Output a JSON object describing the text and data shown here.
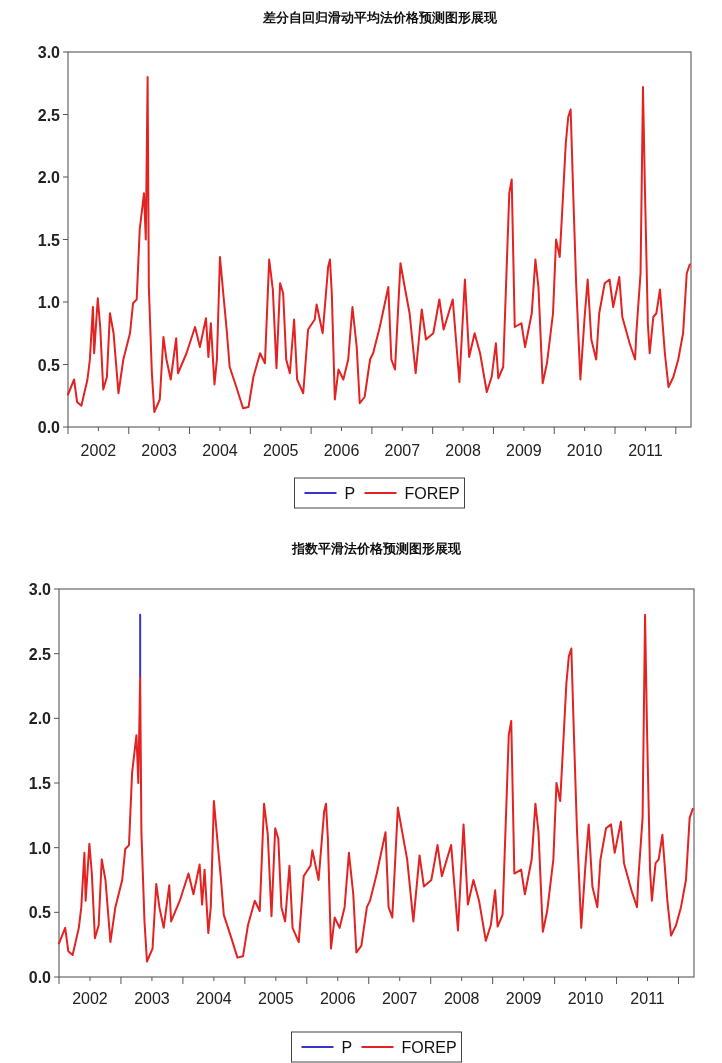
{
  "chart_data": [
    {
      "type": "line",
      "title": "差分自回归滑动平均法价格预测图形展现",
      "legend": "bottom",
      "xlim": [
        2002,
        2012.25
      ],
      "ylim": [
        0,
        3
      ],
      "xticks": [
        {
          "value": 2002,
          "label": null
        },
        {
          "value": 2002.5,
          "label": "2002"
        },
        {
          "value": 2003,
          "label": null
        },
        {
          "value": 2003.5,
          "label": "2003"
        },
        {
          "value": 2004,
          "label": null
        },
        {
          "value": 2004.5,
          "label": "2004"
        },
        {
          "value": 2005,
          "label": null
        },
        {
          "value": 2005.5,
          "label": "2005"
        },
        {
          "value": 2006,
          "label": null
        },
        {
          "value": 2006.5,
          "label": "2006"
        },
        {
          "value": 2007,
          "label": null
        },
        {
          "value": 2007.5,
          "label": "2007"
        },
        {
          "value": 2008,
          "label": null
        },
        {
          "value": 2008.5,
          "label": "2008"
        },
        {
          "value": 2009,
          "label": null
        },
        {
          "value": 2009.5,
          "label": "2009"
        },
        {
          "value": 2010,
          "label": null
        },
        {
          "value": 2010.5,
          "label": "2010"
        },
        {
          "value": 2011,
          "label": null
        },
        {
          "value": 2011.5,
          "label": "2011"
        },
        {
          "value": 2012,
          "label": null
        }
      ],
      "yticks": [
        {
          "value": 0,
          "label": "0.0"
        },
        0.5,
        {
          "value": 1,
          "label": "1.0"
        },
        1.5,
        {
          "value": 2,
          "label": "2.0"
        },
        2.5,
        {
          "value": 3,
          "label": "3.0"
        }
      ],
      "x": [
        2002.0,
        2002.1,
        2002.15,
        2002.22,
        2002.32,
        2002.36,
        2002.41,
        2002.43,
        2002.49,
        2002.53,
        2002.58,
        2002.64,
        2002.69,
        2002.75,
        2002.83,
        2002.91,
        2003.02,
        2003.07,
        2003.13,
        2003.18,
        2003.25,
        2003.28,
        2003.31,
        2003.33,
        2003.38,
        2003.42,
        2003.51,
        2003.57,
        2003.62,
        2003.69,
        2003.78,
        2003.81,
        2003.95,
        2004.09,
        2004.17,
        2004.27,
        2004.31,
        2004.35,
        2004.41,
        2004.45,
        2004.5,
        2004.56,
        2004.61,
        2004.66,
        2004.77,
        2004.88,
        2004.97,
        2005.05,
        2005.16,
        2005.24,
        2005.31,
        2005.37,
        2005.43,
        2005.49,
        2005.54,
        2005.59,
        2005.65,
        2005.72,
        2005.77,
        2005.87,
        2005.95,
        2006.06,
        2006.09,
        2006.19,
        2006.28,
        2006.31,
        2006.34,
        2006.39,
        2006.45,
        2006.53,
        2006.61,
        2006.68,
        2006.75,
        2006.8,
        2006.88,
        2006.97,
        2007.02,
        2007.13,
        2007.27,
        2007.32,
        2007.38,
        2007.47,
        2007.54,
        2007.62,
        2007.72,
        2007.82,
        2007.89,
        2008.01,
        2008.11,
        2008.18,
        2008.33,
        2008.44,
        2008.53,
        2008.6,
        2008.69,
        2008.78,
        2008.89,
        2008.97,
        2009.04,
        2009.08,
        2009.16,
        2009.26,
        2009.3,
        2009.35,
        2009.46,
        2009.52,
        2009.63,
        2009.69,
        2009.74,
        2009.81,
        2009.88,
        2009.98,
        2010.03,
        2010.09,
        2010.15,
        2010.19,
        2010.23,
        2010.27,
        2010.31,
        2010.36,
        2010.43,
        2010.5,
        2010.55,
        2010.61,
        2010.69,
        2010.74,
        2010.83,
        2010.91,
        2010.97,
        2011.07,
        2011.12,
        2011.24,
        2011.33,
        2011.35,
        2011.42,
        2011.46,
        2011.49,
        2011.54,
        2011.57,
        2011.63,
        2011.68,
        2011.74,
        2011.82,
        2011.88,
        2011.96,
        2012.04,
        2012.12,
        2012.18,
        2012.23
      ],
      "series": [
        {
          "name": "P",
          "color": "#3535cc",
          "values": [
            null,
            null,
            null,
            null,
            null,
            null,
            null,
            null,
            null,
            null,
            null,
            null,
            null,
            null,
            null,
            null,
            null,
            null,
            null,
            null,
            null,
            null,
            null,
            null,
            null,
            null,
            null,
            null,
            null,
            null,
            null,
            null,
            null,
            null,
            null,
            null,
            null,
            null,
            null,
            null,
            null,
            null,
            null,
            null,
            null,
            null,
            null,
            null,
            null,
            null,
            null,
            null,
            null,
            null,
            null,
            null,
            null,
            null,
            null,
            null,
            null,
            null,
            null,
            null,
            null,
            null,
            null,
            null,
            null,
            null,
            null,
            null,
            null,
            null,
            null,
            null,
            null,
            null,
            null,
            null,
            null,
            null,
            null,
            null,
            null,
            null,
            null,
            null,
            null,
            null,
            null,
            null,
            null,
            null,
            null,
            null,
            null,
            null,
            null,
            null,
            null,
            null,
            null,
            null,
            null,
            null,
            null,
            null,
            null,
            null,
            null,
            null,
            null,
            null,
            null,
            null,
            null,
            null,
            null,
            null,
            null,
            null,
            null,
            null,
            null,
            null,
            null,
            null,
            null,
            null,
            null,
            null,
            null,
            null,
            null,
            null,
            null,
            null,
            null,
            null,
            null,
            null,
            null,
            null,
            null,
            null,
            null,
            null,
            null
          ]
        },
        {
          "name": "FOREP",
          "color": "#e32222",
          "values": [
            0.26,
            0.38,
            0.2,
            0.17,
            0.38,
            0.54,
            0.96,
            0.59,
            1.03,
            0.8,
            0.3,
            0.4,
            0.91,
            0.75,
            0.27,
            0.54,
            0.75,
            0.99,
            1.02,
            1.58,
            1.87,
            1.5,
            2.8,
            1.12,
            0.43,
            0.12,
            0.22,
            0.72,
            0.54,
            0.38,
            0.71,
            0.43,
            0.59,
            0.8,
            0.64,
            0.87,
            0.56,
            0.83,
            0.34,
            0.54,
            1.36,
            1.04,
            0.78,
            0.48,
            0.32,
            0.15,
            0.16,
            0.4,
            0.59,
            0.51,
            1.34,
            1.1,
            0.47,
            1.15,
            1.07,
            0.54,
            0.43,
            0.86,
            0.38,
            0.27,
            0.78,
            0.86,
            0.98,
            0.75,
            1.28,
            1.34,
            1.07,
            0.22,
            0.46,
            0.38,
            0.54,
            0.96,
            0.64,
            0.19,
            0.24,
            0.54,
            0.59,
            0.8,
            1.12,
            0.54,
            0.46,
            1.31,
            1.12,
            0.91,
            0.43,
            0.94,
            0.7,
            0.75,
            1.02,
            0.78,
            1.02,
            0.36,
            1.18,
            0.56,
            0.75,
            0.59,
            0.28,
            0.4,
            0.67,
            0.39,
            0.48,
            1.87,
            1.98,
            0.8,
            0.83,
            0.64,
            0.91,
            1.34,
            1.12,
            0.35,
            0.51,
            0.91,
            1.5,
            1.36,
            1.9,
            2.27,
            2.48,
            2.54,
            1.9,
            1.15,
            0.38,
            0.88,
            1.18,
            0.7,
            0.54,
            0.91,
            1.15,
            1.18,
            0.96,
            1.2,
            0.88,
            0.67,
            0.54,
            0.75,
            1.23,
            2.72,
            1.95,
            0.83,
            0.59,
            0.88,
            0.91,
            1.1,
            0.59,
            0.32,
            0.4,
            0.54,
            0.75,
            1.23,
            1.3
          ]
        }
      ]
    },
    {
      "type": "line",
      "title": "指数平滑法价格预测图形展现",
      "legend": "bottom",
      "xlim": [
        2002,
        2012.25
      ],
      "ylim": [
        0,
        3
      ],
      "xticks": [
        {
          "value": 2002,
          "label": null
        },
        {
          "value": 2002.5,
          "label": "2002"
        },
        {
          "value": 2003,
          "label": null
        },
        {
          "value": 2003.5,
          "label": "2003"
        },
        {
          "value": 2004,
          "label": null
        },
        {
          "value": 2004.5,
          "label": "2004"
        },
        {
          "value": 2005,
          "label": null
        },
        {
          "value": 2005.5,
          "label": "2005"
        },
        {
          "value": 2006,
          "label": null
        },
        {
          "value": 2006.5,
          "label": "2006"
        },
        {
          "value": 2007,
          "label": null
        },
        {
          "value": 2007.5,
          "label": "2007"
        },
        {
          "value": 2008,
          "label": null
        },
        {
          "value": 2008.5,
          "label": "2008"
        },
        {
          "value": 2009,
          "label": null
        },
        {
          "value": 2009.5,
          "label": "2009"
        },
        {
          "value": 2010,
          "label": null
        },
        {
          "value": 2010.5,
          "label": "2010"
        },
        {
          "value": 2011,
          "label": null
        },
        {
          "value": 2011.5,
          "label": "2011"
        },
        {
          "value": 2012,
          "label": null
        }
      ],
      "yticks": [
        {
          "value": 0,
          "label": "0.0"
        },
        0.5,
        {
          "value": 1,
          "label": "1.0"
        },
        1.5,
        {
          "value": 2,
          "label": "2.0"
        },
        2.5,
        {
          "value": 3,
          "label": "3.0"
        }
      ],
      "x": [
        2002.0,
        2002.1,
        2002.15,
        2002.22,
        2002.32,
        2002.36,
        2002.41,
        2002.43,
        2002.49,
        2002.53,
        2002.58,
        2002.64,
        2002.69,
        2002.75,
        2002.83,
        2002.91,
        2003.02,
        2003.07,
        2003.13,
        2003.18,
        2003.25,
        2003.28,
        2003.31,
        2003.33,
        2003.38,
        2003.42,
        2003.51,
        2003.57,
        2003.62,
        2003.69,
        2003.78,
        2003.81,
        2003.95,
        2004.09,
        2004.17,
        2004.27,
        2004.31,
        2004.35,
        2004.41,
        2004.45,
        2004.5,
        2004.56,
        2004.61,
        2004.66,
        2004.77,
        2004.88,
        2004.97,
        2005.05,
        2005.16,
        2005.24,
        2005.31,
        2005.37,
        2005.43,
        2005.49,
        2005.54,
        2005.59,
        2005.65,
        2005.72,
        2005.77,
        2005.87,
        2005.95,
        2006.06,
        2006.09,
        2006.19,
        2006.28,
        2006.31,
        2006.34,
        2006.39,
        2006.45,
        2006.53,
        2006.61,
        2006.68,
        2006.75,
        2006.8,
        2006.88,
        2006.97,
        2007.02,
        2007.13,
        2007.27,
        2007.32,
        2007.38,
        2007.47,
        2007.54,
        2007.62,
        2007.72,
        2007.82,
        2007.89,
        2008.01,
        2008.11,
        2008.18,
        2008.33,
        2008.44,
        2008.53,
        2008.6,
        2008.69,
        2008.78,
        2008.89,
        2008.97,
        2009.04,
        2009.08,
        2009.16,
        2009.26,
        2009.3,
        2009.35,
        2009.46,
        2009.52,
        2009.63,
        2009.69,
        2009.74,
        2009.81,
        2009.88,
        2009.98,
        2010.03,
        2010.09,
        2010.15,
        2010.19,
        2010.23,
        2010.27,
        2010.31,
        2010.36,
        2010.43,
        2010.5,
        2010.55,
        2010.61,
        2010.69,
        2010.74,
        2010.83,
        2010.91,
        2010.97,
        2011.07,
        2011.12,
        2011.24,
        2011.33,
        2011.35,
        2011.42,
        2011.46,
        2011.49,
        2011.54,
        2011.57,
        2011.63,
        2011.68,
        2011.74,
        2011.82,
        2011.88,
        2011.96,
        2012.04,
        2012.12,
        2012.18,
        2012.23
      ],
      "series": [
        {
          "name": "P",
          "color": "#3535cc",
          "x": [
            2003.31,
            2003.31
          ],
          "values": [
            2.32,
            2.8
          ]
        },
        {
          "name": "FOREP",
          "color": "#e32222",
          "values": [
            0.26,
            0.38,
            0.2,
            0.17,
            0.38,
            0.54,
            0.96,
            0.59,
            1.03,
            0.8,
            0.3,
            0.4,
            0.91,
            0.75,
            0.27,
            0.54,
            0.75,
            0.99,
            1.02,
            1.58,
            1.87,
            1.5,
            2.32,
            1.12,
            0.43,
            0.12,
            0.22,
            0.72,
            0.54,
            0.38,
            0.71,
            0.43,
            0.59,
            0.8,
            0.64,
            0.87,
            0.56,
            0.83,
            0.34,
            0.54,
            1.36,
            1.04,
            0.78,
            0.48,
            0.32,
            0.15,
            0.16,
            0.4,
            0.59,
            0.51,
            1.34,
            1.1,
            0.47,
            1.15,
            1.07,
            0.54,
            0.43,
            0.86,
            0.38,
            0.27,
            0.78,
            0.86,
            0.98,
            0.75,
            1.28,
            1.34,
            1.07,
            0.22,
            0.46,
            0.38,
            0.54,
            0.96,
            0.64,
            0.19,
            0.24,
            0.54,
            0.59,
            0.8,
            1.12,
            0.54,
            0.46,
            1.31,
            1.12,
            0.91,
            0.43,
            0.94,
            0.7,
            0.75,
            1.02,
            0.78,
            1.02,
            0.36,
            1.18,
            0.56,
            0.75,
            0.59,
            0.28,
            0.4,
            0.67,
            0.39,
            0.48,
            1.87,
            1.98,
            0.8,
            0.83,
            0.64,
            0.91,
            1.34,
            1.12,
            0.35,
            0.51,
            0.91,
            1.5,
            1.36,
            1.9,
            2.27,
            2.48,
            2.54,
            1.9,
            1.15,
            0.38,
            0.88,
            1.18,
            0.7,
            0.54,
            0.91,
            1.15,
            1.18,
            0.96,
            1.2,
            0.88,
            0.67,
            0.54,
            0.75,
            1.23,
            2.8,
            1.95,
            0.83,
            0.59,
            0.88,
            0.91,
            1.1,
            0.59,
            0.32,
            0.4,
            0.54,
            0.75,
            1.23,
            1.3
          ]
        }
      ]
    }
  ]
}
